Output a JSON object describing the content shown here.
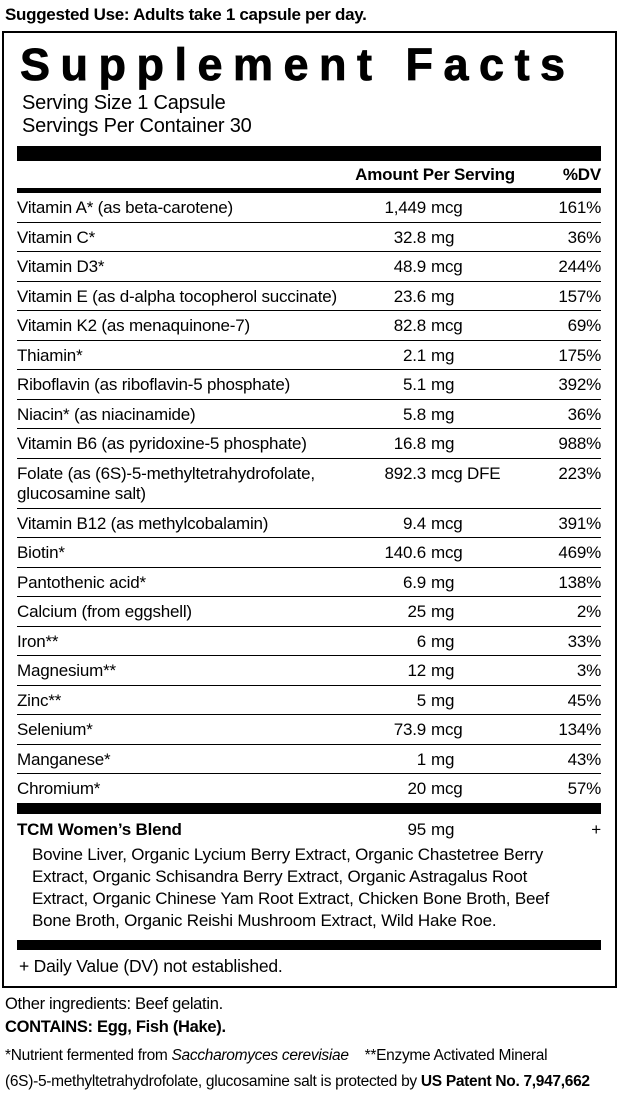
{
  "colors": {
    "text": "#000000",
    "background": "#ffffff"
  },
  "suggested_use": "Suggested Use: Adults take 1 capsule per day.",
  "panel": {
    "title": "Supplement Facts",
    "serving_size": "Serving Size 1 Capsule",
    "servings_per_container": "Servings Per Container 30",
    "columns": {
      "amount": "Amount Per Serving",
      "dv": "%DV"
    },
    "rows": [
      {
        "name": "Vitamin A* (as beta-carotene)",
        "amount_value": "1,449",
        "amount_unit": "mcg",
        "dv": "161%"
      },
      {
        "name": "Vitamin C*",
        "amount_value": "32.8",
        "amount_unit": "mg",
        "dv": "36%"
      },
      {
        "name": "Vitamin D3*",
        "amount_value": "48.9",
        "amount_unit": "mcg",
        "dv": "244%"
      },
      {
        "name": "Vitamin E (as d-alpha tocopherol succinate)",
        "amount_value": "23.6",
        "amount_unit": "mg",
        "dv": "157%"
      },
      {
        "name": "Vitamin K2 (as menaquinone-7)",
        "amount_value": "82.8",
        "amount_unit": "mcg",
        "dv": "69%"
      },
      {
        "name": "Thiamin*",
        "amount_value": "2.1",
        "amount_unit": "mg",
        "dv": "175%"
      },
      {
        "name": "Riboflavin (as riboflavin-5 phosphate)",
        "amount_value": "5.1",
        "amount_unit": "mg",
        "dv": "392%"
      },
      {
        "name": "Niacin* (as niacinamide)",
        "amount_value": "5.8",
        "amount_unit": "mg",
        "dv": "36%"
      },
      {
        "name": "Vitamin B6 (as pyridoxine-5 phosphate)",
        "amount_value": "16.8",
        "amount_unit": "mg",
        "dv": "988%"
      },
      {
        "name": "Folate (as (6S)-5-methyltetrahydrofolate,",
        "name2": "glucosamine salt)",
        "amount_value": "892.3",
        "amount_unit": "mcg DFE",
        "dv": "223%"
      },
      {
        "name": "Vitamin B12 (as methylcobalamin)",
        "amount_value": "9.4",
        "amount_unit": "mcg",
        "dv": "391%"
      },
      {
        "name": "Biotin*",
        "amount_value": "140.6",
        "amount_unit": "mcg",
        "dv": "469%"
      },
      {
        "name": "Pantothenic acid*",
        "amount_value": "6.9",
        "amount_unit": "mg",
        "dv": "138%"
      },
      {
        "name": "Calcium (from eggshell)",
        "amount_value": "25",
        "amount_unit": "mg",
        "dv": "2%"
      },
      {
        "name": "Iron**",
        "amount_value": "6",
        "amount_unit": "mg",
        "dv": "33%"
      },
      {
        "name": "Magnesium**",
        "amount_value": "12",
        "amount_unit": "mg",
        "dv": "3%"
      },
      {
        "name": "Zinc**",
        "amount_value": "5",
        "amount_unit": "mg",
        "dv": "45%"
      },
      {
        "name": "Selenium*",
        "amount_value": "73.9",
        "amount_unit": "mcg",
        "dv": "134%"
      },
      {
        "name": "Manganese*",
        "amount_value": "1",
        "amount_unit": "mg",
        "dv": "43%"
      },
      {
        "name": "Chromium*",
        "amount_value": "20",
        "amount_unit": "mcg",
        "dv": "57%"
      }
    ],
    "blend": {
      "name": "TCM Women’s Blend",
      "amount_value": "95",
      "amount_unit": "mg",
      "dv": "+",
      "ingredients": "Bovine Liver, Organic Lycium Berry Extract, Organic Chastetree Berry Extract, Organic Schisandra Berry Extract, Organic Astragalus Root Extract, Organic Chinese Yam Root Extract, Chicken Bone Broth, Beef Bone Broth, Organic Reishi Mushroom Extract, Wild Hake Roe."
    },
    "dv_note": "+ Daily Value (DV) not established."
  },
  "footer": {
    "other_ingredients": "Other ingredients: Beef gelatin.",
    "contains": "CONTAINS: Egg, Fish (Hake).",
    "note1_pre": "*Nutrient fermented from ",
    "note1_italic": "Saccharomyces cerevisiae",
    "note1_post": "**Enzyme Activated Mineral",
    "note2_pre": "(6S)-5-methyltetrahydrofolate, glucosamine salt is protected by ",
    "note2_bold": "US Patent No. 7,947,662"
  }
}
